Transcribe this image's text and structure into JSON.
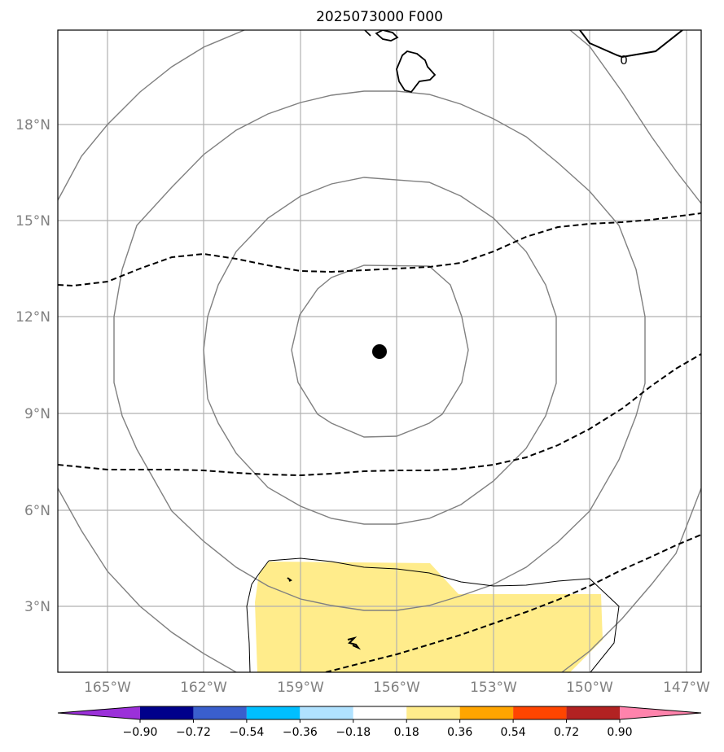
{
  "title": "2025073000 F000",
  "map": {
    "lon_labels": [
      "165°W",
      "162°W",
      "159°W",
      "156°W",
      "153°W",
      "150°W",
      "147°W"
    ],
    "lat_labels": [
      "18°N",
      "15°N",
      "12°N",
      "9°N",
      "6°N",
      "3°N"
    ],
    "contour_label": "0",
    "center_marker": "storm-center"
  },
  "colorbar": {
    "tick_labels": [
      "−0.90",
      "−0.72",
      "−0.54",
      "−0.36",
      "−0.18",
      "0.18",
      "0.36",
      "0.54",
      "0.72",
      "0.90"
    ],
    "colors": [
      "#9b30d9",
      "#00008b",
      "#3a5fcd",
      "#00bfff",
      "#b0e2ff",
      "#ffffff",
      "#ffec8b",
      "#ffa500",
      "#ff4500",
      "#b22222",
      "#ff83ac"
    ]
  }
}
